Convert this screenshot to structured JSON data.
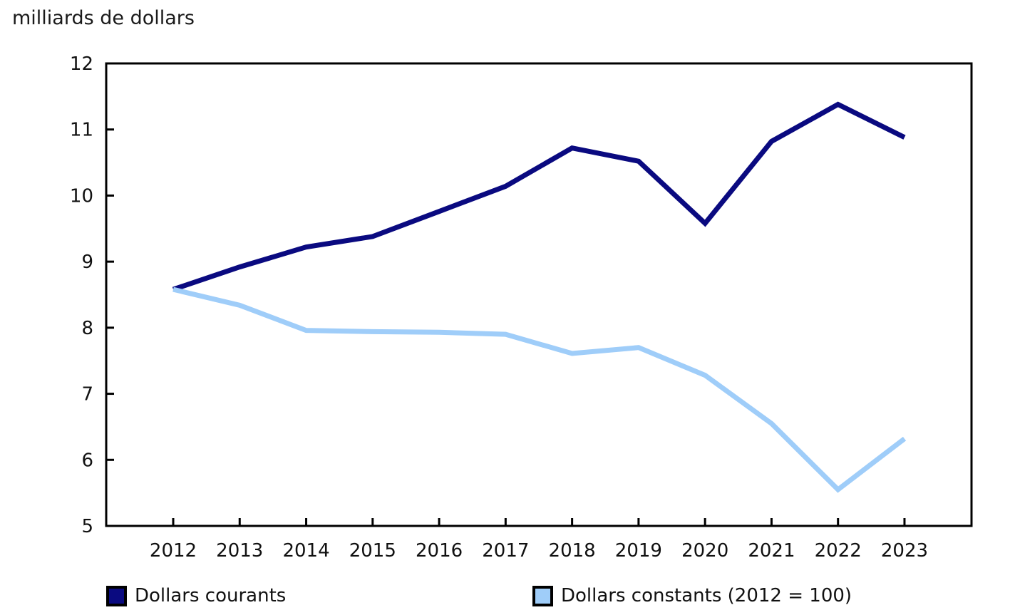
{
  "chart_data": {
    "type": "line",
    "title": "milliards de dollars",
    "categories": [
      "2012",
      "2013",
      "2014",
      "2015",
      "2016",
      "2017",
      "2018",
      "2019",
      "2020",
      "2021",
      "2022",
      "2023"
    ],
    "series": [
      {
        "name": "Dollars courants",
        "color": "#0a0a80",
        "values": [
          8.58,
          8.92,
          9.22,
          9.38,
          9.76,
          10.14,
          10.72,
          10.52,
          9.58,
          10.82,
          11.38,
          10.88
        ]
      },
      {
        "name": "Dollars constants (2012 = 100)",
        "color": "#9fcdf9",
        "values": [
          8.58,
          8.34,
          7.96,
          7.94,
          7.93,
          7.9,
          7.61,
          7.7,
          7.28,
          6.55,
          5.55,
          6.32
        ]
      }
    ],
    "ylim": [
      5,
      12
    ],
    "yticks": [
      5,
      6,
      7,
      8,
      9,
      10,
      11,
      12
    ],
    "xlabel": "",
    "ylabel": "milliards de dollars",
    "grid": false,
    "legend_position": "bottom",
    "axis_color": "#000000",
    "tick_label_color": "#111111"
  },
  "legend": {
    "items": [
      {
        "label": "Dollars courants",
        "color": "#0a0a80"
      },
      {
        "label": "Dollars constants (2012 = 100)",
        "color": "#9fcdf9"
      }
    ]
  }
}
